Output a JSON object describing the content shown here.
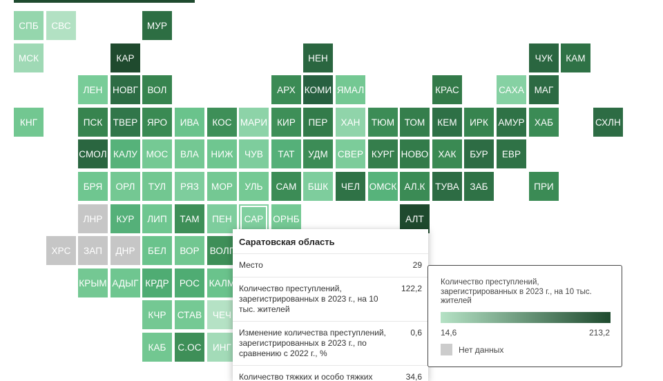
{
  "colors": {
    "no_data": "#c6c6c6",
    "scale_low": "#b5e2c5",
    "scale_high": "#1e4a2e"
  },
  "tooltip": {
    "title": "Саратовская область",
    "rows": [
      {
        "label": "Место",
        "value": "29"
      },
      {
        "label": "Количество преступлений, зарегистрированных в 2023 г., на 10 тыс. жителей",
        "value": "122,2"
      },
      {
        "label": "Изменение количества преступлений, зарегистрированных в 2023 г., по сравнению с 2022 г., %",
        "value": "0,6"
      },
      {
        "label": "Количество тяжких и особо тяжких",
        "value": "34,6"
      }
    ]
  },
  "legend": {
    "title": "Количество преступлений, зарегистрированных в 2023 г., на 10 тыс. жителей",
    "min": "14,6",
    "max": "213,2",
    "no_data": "Нет данных"
  },
  "regions": [
    {
      "label": "СПБ",
      "color": "#95d6ad"
    },
    {
      "label": "СВС",
      "color": "#b2e1c3"
    },
    {
      "label": "МУР",
      "color": "#2d6e43"
    },
    {
      "label": "МСК",
      "color": "#9fd9b5"
    },
    {
      "label": "КАР",
      "color": "#1f4a2e"
    },
    {
      "label": "НЕН",
      "color": "#2a6640"
    },
    {
      "label": "ЧУК",
      "color": "#2a6640"
    },
    {
      "label": "КАМ",
      "color": "#2f7246"
    },
    {
      "label": "ЛЕН",
      "color": "#78cc98"
    },
    {
      "label": "НОВГ",
      "color": "#2d6c44"
    },
    {
      "label": "ВОЛ",
      "color": "#37844f"
    },
    {
      "label": "АРХ",
      "color": "#3b8b55"
    },
    {
      "label": "КОМИ",
      "color": "#276040"
    },
    {
      "label": "ЯМАЛ",
      "color": "#74c893"
    },
    {
      "label": "КРАС",
      "color": "#337a49"
    },
    {
      "label": "САХА",
      "color": "#86d1a3"
    },
    {
      "label": "МАГ",
      "color": "#2c6a43"
    },
    {
      "label": "КНГ",
      "color": "#72c791"
    },
    {
      "label": "ПСК",
      "color": "#37844f"
    },
    {
      "label": "ТВЕР",
      "color": "#31764a"
    },
    {
      "label": "ЯРО",
      "color": "#3a8a53"
    },
    {
      "label": "ИВА",
      "color": "#6ac38c"
    },
    {
      "label": "КОС",
      "color": "#3e8f58"
    },
    {
      "label": "МАРИ",
      "color": "#8dd3a8"
    },
    {
      "label": "КИР",
      "color": "#3e8f58"
    },
    {
      "label": "ПЕР",
      "color": "#337b4a"
    },
    {
      "label": "ХАН",
      "color": "#90d4aa"
    },
    {
      "label": "ТЮМ",
      "color": "#3c8c56"
    },
    {
      "label": "ТОМ",
      "color": "#357e4c"
    },
    {
      "label": "КЕМ",
      "color": "#2e7046"
    },
    {
      "label": "ИРК",
      "color": "#37844f"
    },
    {
      "label": "АМУР",
      "color": "#2f7246"
    },
    {
      "label": "ХАБ",
      "color": "#3b8b55"
    },
    {
      "label": "СХЛН",
      "color": "#2d6c44"
    },
    {
      "label": "СМОЛ",
      "color": "#2a6640"
    },
    {
      "label": "КАЛУ",
      "color": "#56b27a"
    },
    {
      "label": "МОС",
      "color": "#75c994"
    },
    {
      "label": "ВЛА",
      "color": "#74c893"
    },
    {
      "label": "НИЖ",
      "color": "#6fc690"
    },
    {
      "label": "ЧУВ",
      "color": "#7ecd9d"
    },
    {
      "label": "ТАТ",
      "color": "#55b079"
    },
    {
      "label": "УДМ",
      "color": "#3c8c56"
    },
    {
      "label": "СВЕР",
      "color": "#7ccc9a"
    },
    {
      "label": "КУРГ",
      "color": "#357e4c"
    },
    {
      "label": "НОВО",
      "color": "#337b4a"
    },
    {
      "label": "ХАК",
      "color": "#3a8a53"
    },
    {
      "label": "БУР",
      "color": "#2d6c44"
    },
    {
      "label": "ЕВР",
      "color": "#2f7246"
    },
    {
      "label": "БРЯ",
      "color": "#6fc690"
    },
    {
      "label": "ОРЛ",
      "color": "#74c893"
    },
    {
      "label": "ТУЛ",
      "color": "#72c791"
    },
    {
      "label": "РЯЗ",
      "color": "#7ecd9d"
    },
    {
      "label": "МОР",
      "color": "#74c893"
    },
    {
      "label": "УЛЬ",
      "color": "#75c994"
    },
    {
      "label": "САМ",
      "color": "#3c8c56"
    },
    {
      "label": "БШК",
      "color": "#7ecd9d"
    },
    {
      "label": "ЧЕЛ",
      "color": "#2f7246"
    },
    {
      "label": "ОМСК",
      "color": "#57b37b"
    },
    {
      "label": "АЛ.К",
      "color": "#3b8b55"
    },
    {
      "label": "ТУВА",
      "color": "#2d6c44"
    },
    {
      "label": "ЗАБ",
      "color": "#2f7246"
    },
    {
      "label": "ПРИ",
      "color": "#3b8b55"
    },
    {
      "label": "ЛНР",
      "color": "#c6c6c6"
    },
    {
      "label": "КУР",
      "color": "#55b079"
    },
    {
      "label": "ЛИП",
      "color": "#6fc690"
    },
    {
      "label": "ТАМ",
      "color": "#3e8f58"
    },
    {
      "label": "ПЕН",
      "color": "#7ecd9d"
    },
    {
      "label": "САР",
      "color": "#80cf9f"
    },
    {
      "label": "ОРНБ",
      "color": "#75c994"
    },
    {
      "label": "АЛТ",
      "color": "#1f4a2e"
    },
    {
      "label": "ХРС",
      "color": "#c6c6c6"
    },
    {
      "label": "ЗАП",
      "color": "#c6c6c6"
    },
    {
      "label": "ДНР",
      "color": "#c6c6c6"
    },
    {
      "label": "БЕЛ",
      "color": "#6ac38c"
    },
    {
      "label": "ВОР",
      "color": "#72c791"
    },
    {
      "label": "ВОЛГ",
      "color": "#3e8f58"
    },
    {
      "label": "КРЫМ",
      "color": "#74c893"
    },
    {
      "label": "АДЫГ",
      "color": "#6fc690"
    },
    {
      "label": "КРДР",
      "color": "#4fac73"
    },
    {
      "label": "РОС",
      "color": "#4fac73"
    },
    {
      "label": "КАЛМ",
      "color": "#6ac38c"
    },
    {
      "label": "КЧР",
      "color": "#74c893"
    },
    {
      "label": "СТАВ",
      "color": "#75c994"
    },
    {
      "label": "ЧЕЧ",
      "color": "#b5e2c5"
    },
    {
      "label": "КАБ",
      "color": "#72c791"
    },
    {
      "label": "С.ОС",
      "color": "#3e8f58"
    },
    {
      "label": "ИНГ",
      "color": "#a3dbb8"
    }
  ]
}
